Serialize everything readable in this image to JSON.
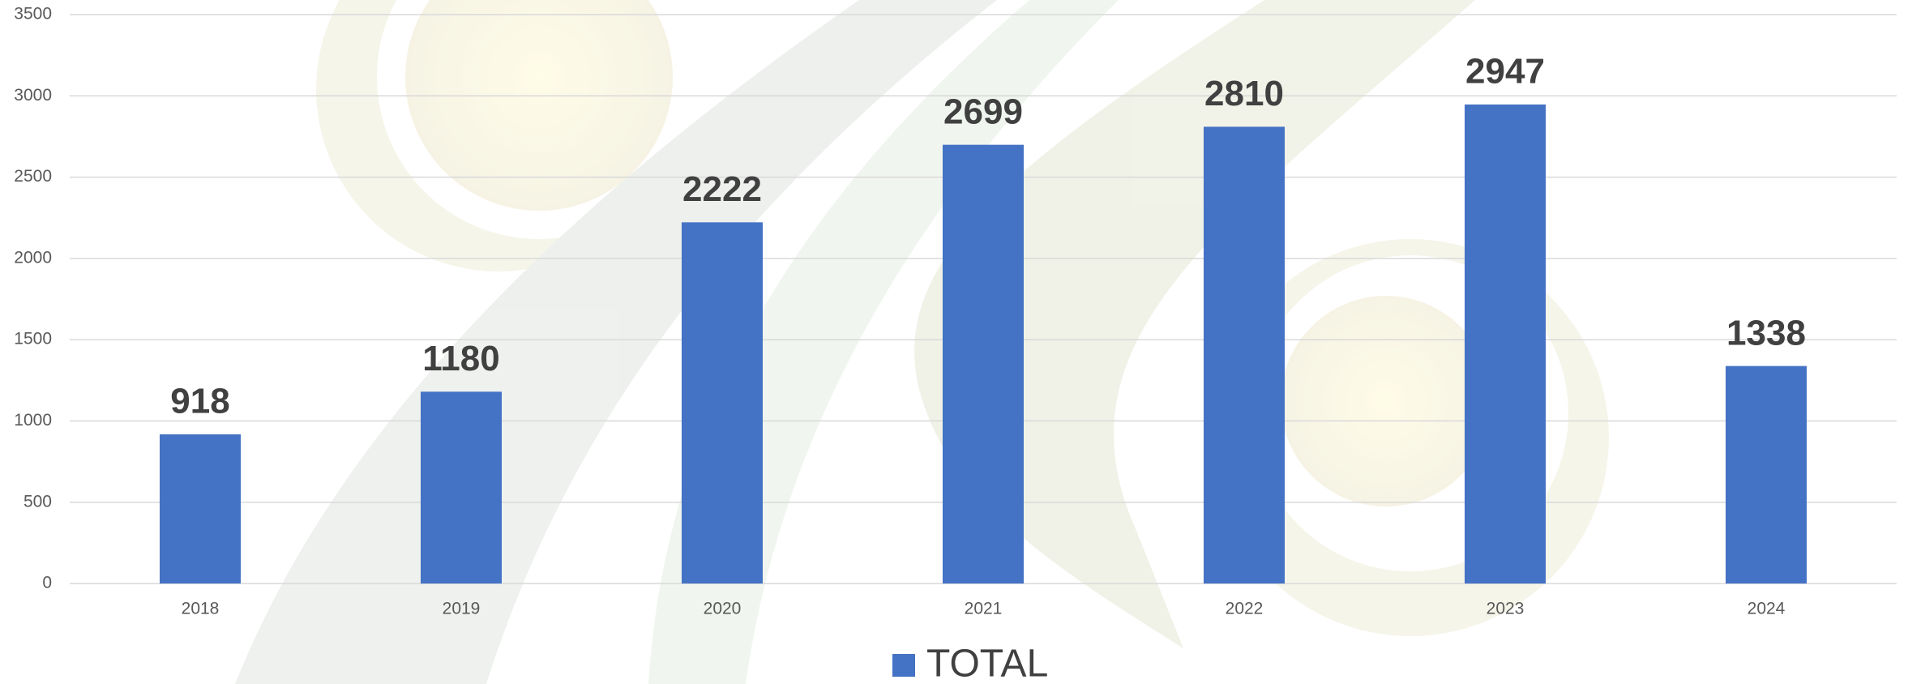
{
  "chart_data": {
    "type": "bar",
    "categories": [
      "2018",
      "2019",
      "2020",
      "2021",
      "2022",
      "2023",
      "2024"
    ],
    "series": [
      {
        "name": "TOTAL",
        "color": "#4472c4",
        "values": [
          918,
          1180,
          2222,
          2699,
          2810,
          2947,
          1338
        ]
      }
    ],
    "ylim": [
      0,
      3500
    ],
    "yticks": [
      0,
      500,
      1000,
      1500,
      2000,
      2500,
      3000,
      3500
    ],
    "grid": true,
    "data_labels": true,
    "legend": "bottom"
  }
}
